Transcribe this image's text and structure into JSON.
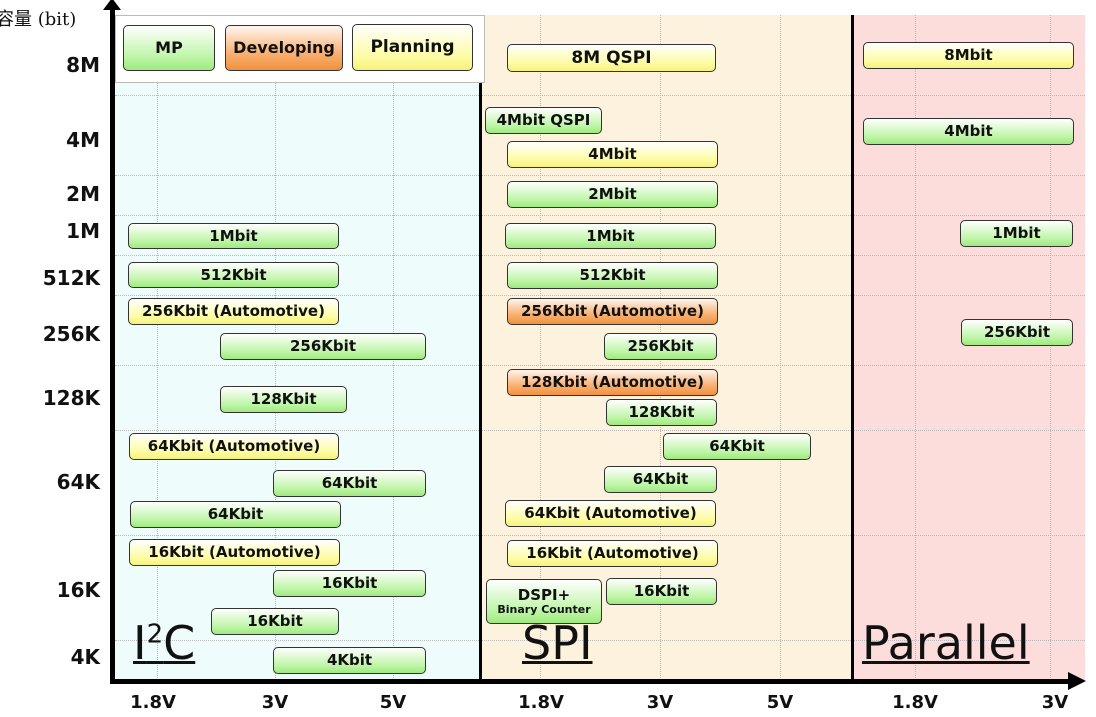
{
  "y_axis": {
    "title": "容量 (bit)",
    "ticks": [
      "8M",
      "4M",
      "2M",
      "1M",
      "512K",
      "256K",
      "128K",
      "64K",
      "16K",
      "4K"
    ]
  },
  "x_axis": {
    "ticks": [
      "1.8V",
      "3V",
      "5V",
      "1.8V",
      "3V",
      "5V",
      "1.8V",
      "3V"
    ]
  },
  "legend": [
    {
      "label": "MP",
      "status": "green"
    },
    {
      "label": "Developing",
      "status": "orange"
    },
    {
      "label": "Planning",
      "status": "yellow"
    }
  ],
  "status_colors": {
    "MP": "#a8ee88",
    "Developing": "#f5a050",
    "Planning": "#faf690"
  },
  "sections": {
    "i2c": {
      "title": "I",
      "title_sup": "2",
      "title_rest": "C",
      "background": "#effcfc",
      "items": [
        {
          "label": "1Mbit",
          "status": "green"
        },
        {
          "label": "512Kbit",
          "status": "green"
        },
        {
          "label": "256Kbit (Automotive)",
          "status": "yellow"
        },
        {
          "label": "256Kbit",
          "status": "green"
        },
        {
          "label": "128Kbit",
          "status": "green"
        },
        {
          "label": "64Kbit (Automotive)",
          "status": "yellow"
        },
        {
          "label": "64Kbit",
          "status": "green"
        },
        {
          "label": "64Kbit",
          "status": "green"
        },
        {
          "label": "16Kbit (Automotive)",
          "status": "yellow"
        },
        {
          "label": "16Kbit",
          "status": "green"
        },
        {
          "label": "16Kbit",
          "status": "green"
        },
        {
          "label": "4Kbit",
          "status": "green"
        }
      ]
    },
    "spi": {
      "title": "SPI",
      "background": "#fdf2dd",
      "items": [
        {
          "label": "8M QSPI",
          "status": "yellow"
        },
        {
          "label": "4Mbit QSPI",
          "status": "green"
        },
        {
          "label": "4Mbit",
          "status": "yellow"
        },
        {
          "label": "2Mbit",
          "status": "green"
        },
        {
          "label": "1Mbit",
          "status": "green"
        },
        {
          "label": "512Kbit",
          "status": "green"
        },
        {
          "label": "256Kbit (Automotive)",
          "status": "orange"
        },
        {
          "label": "256Kbit",
          "status": "green"
        },
        {
          "label": "128Kbit (Automotive)",
          "status": "orange"
        },
        {
          "label": "128Kbit",
          "status": "green"
        },
        {
          "label": "64Kbit",
          "status": "green"
        },
        {
          "label": "64Kbit",
          "status": "green"
        },
        {
          "label": "64Kbit (Automotive)",
          "status": "yellow"
        },
        {
          "label": "16Kbit (Automotive)",
          "status": "yellow"
        },
        {
          "label": "DSPI+",
          "sublabel": "Binary Counter",
          "status": "green"
        },
        {
          "label": "16Kbit",
          "status": "green"
        }
      ]
    },
    "parallel": {
      "title": "Parallel",
      "background": "#fddcdc",
      "items": [
        {
          "label": "8Mbit",
          "status": "yellow"
        },
        {
          "label": "4Mbit",
          "status": "green"
        },
        {
          "label": "1Mbit",
          "status": "green"
        },
        {
          "label": "256Kbit",
          "status": "green"
        }
      ]
    }
  }
}
